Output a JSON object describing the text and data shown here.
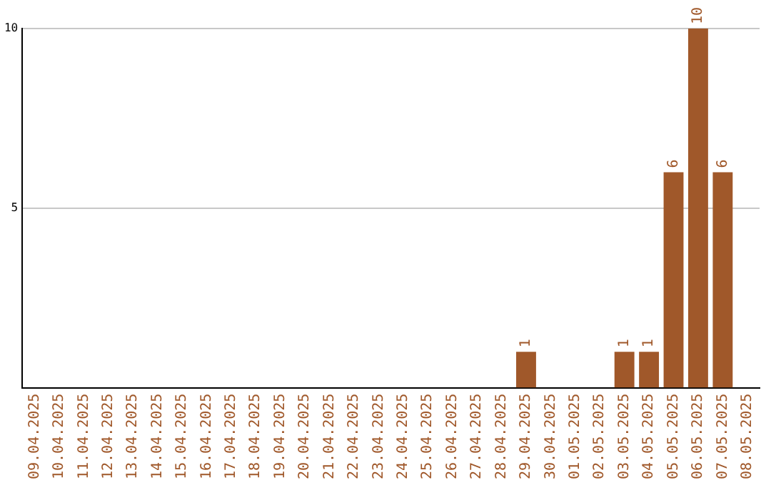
{
  "chart_data": {
    "type": "bar",
    "categories": [
      "09.04.2025",
      "10.04.2025",
      "11.04.2025",
      "12.04.2025",
      "13.04.2025",
      "14.04.2025",
      "15.04.2025",
      "16.04.2025",
      "17.04.2025",
      "18.04.2025",
      "19.04.2025",
      "20.04.2025",
      "21.04.2025",
      "22.04.2025",
      "23.04.2025",
      "24.04.2025",
      "25.04.2025",
      "26.04.2025",
      "27.04.2025",
      "28.04.2025",
      "29.04.2025",
      "30.04.2025",
      "01.05.2025",
      "02.05.2025",
      "03.05.2025",
      "04.05.2025",
      "05.05.2025",
      "06.05.2025",
      "07.05.2025",
      "08.05.2025"
    ],
    "values": [
      0,
      0,
      0,
      0,
      0,
      0,
      0,
      0,
      0,
      0,
      0,
      0,
      0,
      0,
      0,
      0,
      0,
      0,
      0,
      0,
      1,
      0,
      0,
      0,
      1,
      1,
      6,
      10,
      6,
      0
    ],
    "value_labels": [
      null,
      null,
      null,
      null,
      null,
      null,
      null,
      null,
      null,
      null,
      null,
      null,
      null,
      null,
      null,
      null,
      null,
      null,
      null,
      null,
      "1",
      null,
      null,
      null,
      "1",
      "1",
      "6",
      "10",
      "6",
      null
    ],
    "color": "#a0582a",
    "ylim": [
      0,
      10
    ],
    "yticks": [
      5,
      10
    ],
    "grid": "y",
    "legend": false
  }
}
